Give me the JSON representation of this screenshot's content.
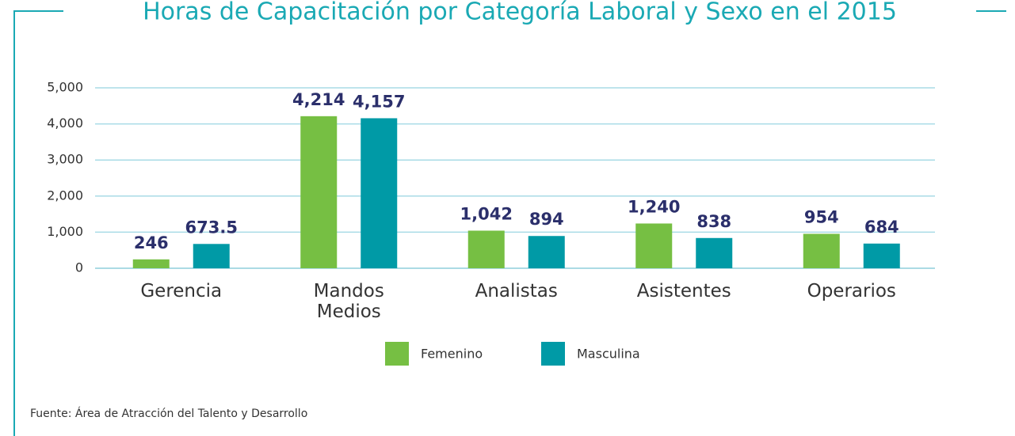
{
  "chart_data": {
    "type": "bar",
    "title": "Horas de Capacitación por Categoría Laboral y Sexo en el 2015",
    "categories": [
      "Gerencia",
      "Mandos Medios",
      "Analistas",
      "Asistentes",
      "Operarios"
    ],
    "series": [
      {
        "name": "Femenino",
        "color": "#76bf43",
        "values": [
          246,
          4214,
          1042,
          1240,
          954
        ],
        "value_labels": [
          "246",
          "4,214",
          "1,042",
          "1,240",
          "954"
        ]
      },
      {
        "name": "Masculina",
        "color": "#009aa6",
        "values": [
          673.5,
          4157,
          894,
          838,
          684
        ],
        "value_labels": [
          "673.5",
          "4,157",
          "894",
          "838",
          "684"
        ]
      }
    ],
    "ylim": [
      0,
      5000
    ],
    "yticks": [
      0,
      {
        "value": 1000,
        "label": "1,000"
      },
      {
        "value": 2000,
        "label": "2,000"
      },
      {
        "value": 3000,
        "label": "3,000"
      },
      {
        "value": 4000,
        "label": "4,000"
      },
      {
        "value": 5000,
        "label": "5,000"
      }
    ],
    "grid": true,
    "legend": "bottom",
    "note": "Fuente: Área de Atracción del Talento y Desarrollo"
  }
}
